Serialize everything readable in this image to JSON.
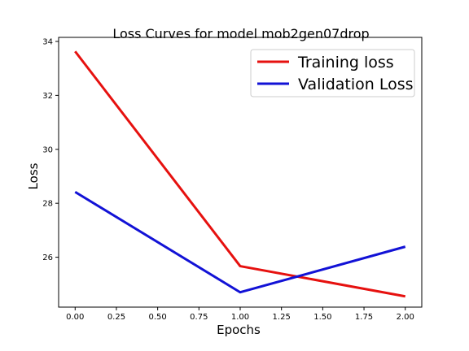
{
  "chart_data": {
    "type": "line",
    "title": "Loss Curves for model mob2gen07drop",
    "xlabel": "Epochs",
    "ylabel": "Loss",
    "x": [
      0,
      1,
      2
    ],
    "xlim": [
      -0.1,
      2.1
    ],
    "ylim": [
      24.15,
      34.15
    ],
    "xticks": [
      0.0,
      0.25,
      0.5,
      0.75,
      1.0,
      1.25,
      1.5,
      1.75,
      2.0
    ],
    "xtick_labels": [
      "0.00",
      "0.25",
      "0.50",
      "0.75",
      "1.00",
      "1.25",
      "1.50",
      "1.75",
      "2.00"
    ],
    "yticks": [
      26,
      28,
      30,
      32,
      34
    ],
    "ytick_labels": [
      "26",
      "28",
      "30",
      "32",
      "34"
    ],
    "grid": false,
    "legend_position": "top-right",
    "series": [
      {
        "name": "Training loss",
        "color": "#e6110f",
        "values": [
          33.63,
          25.67,
          24.55
        ]
      },
      {
        "name": "Validation Loss",
        "color": "#1212d6",
        "values": [
          28.42,
          24.7,
          26.39
        ]
      }
    ]
  }
}
